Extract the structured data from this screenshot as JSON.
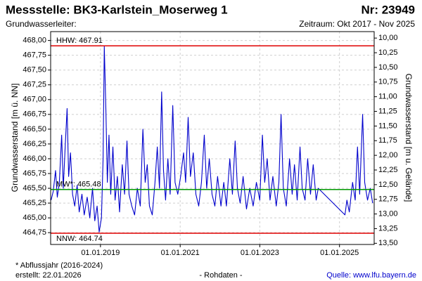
{
  "chart_data": {
    "type": "line",
    "title": "Messstelle: BK3-Karlstein_Moserweg 1",
    "title_right": "Nr: 23949",
    "subtitle": "Grundwasserleiter:",
    "subtitle_right": "Zeitraum: Okt 2017 - Nov 2025",
    "y_label": "Grundwasserstand [m ü. NN]",
    "y2_label": "Grundwasserstand [m u. Gelände]",
    "footnote": "* Abflussjahr (2016-2024)",
    "created": "erstellt:  22.01.2026",
    "data_note": "- Rohdaten -",
    "source": "Quelle: www.lfu.bayern.de",
    "color": "#0000cc",
    "grid": true,
    "xlim": [
      "2017-10-01",
      "2025-11-15"
    ],
    "xticks": [
      {
        "value": "2019-01-01",
        "label": "01.01.2019"
      },
      {
        "value": "2021-01-01",
        "label": "01.01.2021"
      },
      {
        "value": "2023-01-01",
        "label": "01.01.2023"
      },
      {
        "value": "2025-01-01",
        "label": "01.01.2025"
      }
    ],
    "ylim": [
      464.55,
      468.15
    ],
    "yticks": [
      {
        "value": 464.75,
        "label": "464,75"
      },
      {
        "value": 465,
        "label": "465,00"
      },
      {
        "value": 465.25,
        "label": "465,25"
      },
      {
        "value": 465.5,
        "label": "465,50"
      },
      {
        "value": 465.75,
        "label": "465,75"
      },
      {
        "value": 466,
        "label": "466,00"
      },
      {
        "value": 466.25,
        "label": "466,25"
      },
      {
        "value": 466.5,
        "label": "466,50"
      },
      {
        "value": 466.75,
        "label": "466,75"
      },
      {
        "value": 467,
        "label": "467,00"
      },
      {
        "value": 467.25,
        "label": "467,25"
      },
      {
        "value": 467.5,
        "label": "467,50"
      },
      {
        "value": 467.75,
        "label": "467,75"
      },
      {
        "value": 468,
        "label": "468,00"
      }
    ],
    "y2lim": [
      13.52,
      9.89
    ],
    "y2ticks": [
      {
        "value": 10,
        "label": "10,00"
      },
      {
        "value": 10.25,
        "label": "10,25"
      },
      {
        "value": 10.5,
        "label": "10,50"
      },
      {
        "value": 10.75,
        "label": "10,75"
      },
      {
        "value": 11,
        "label": "11,00"
      },
      {
        "value": 11.25,
        "label": "11,25"
      },
      {
        "value": 11.5,
        "label": "11,50"
      },
      {
        "value": 11.75,
        "label": "11,75"
      },
      {
        "value": 12,
        "label": "12,00"
      },
      {
        "value": 12.25,
        "label": "12,25"
      },
      {
        "value": 12.5,
        "label": "12,50"
      },
      {
        "value": 12.75,
        "label": "12,75"
      },
      {
        "value": 13,
        "label": "13,00"
      },
      {
        "value": 13.25,
        "label": "13,25"
      },
      {
        "value": 13.5,
        "label": "13,50"
      }
    ],
    "reference_lines": [
      {
        "label": "HHW: 467.91",
        "value": 467.91,
        "color": "#e00000"
      },
      {
        "label": "MW*: 465.48",
        "value": 465.48,
        "color": "#009900"
      },
      {
        "label": "NNW: 464.74",
        "value": 464.74,
        "color": "#e00000"
      }
    ],
    "x": [
      "2017-10-05",
      "2017-10-25",
      "2017-11-15",
      "2017-12-01",
      "2017-12-20",
      "2018-01-10",
      "2018-01-25",
      "2018-02-10",
      "2018-03-01",
      "2018-03-15",
      "2018-04-01",
      "2018-04-20",
      "2018-05-10",
      "2018-06-01",
      "2018-06-20",
      "2018-07-15",
      "2018-08-05",
      "2018-09-01",
      "2018-09-25",
      "2018-10-20",
      "2018-11-10",
      "2018-12-01",
      "2018-12-20",
      "2019-01-10",
      "2019-01-25",
      "2019-02-05",
      "2019-02-20",
      "2019-03-05",
      "2019-03-20",
      "2019-04-05",
      "2019-04-25",
      "2019-05-15",
      "2019-06-05",
      "2019-06-25",
      "2019-07-20",
      "2019-08-10",
      "2019-09-01",
      "2019-09-20",
      "2019-10-15",
      "2019-11-10",
      "2019-12-05",
      "2020-01-01",
      "2020-01-25",
      "2020-02-15",
      "2020-03-05",
      "2020-03-25",
      "2020-04-20",
      "2020-05-15",
      "2020-06-05",
      "2020-06-25",
      "2020-07-15",
      "2020-08-01",
      "2020-08-20",
      "2020-09-10",
      "2020-10-01",
      "2020-10-25",
      "2020-11-15",
      "2020-12-10",
      "2021-01-05",
      "2021-02-01",
      "2021-02-20",
      "2021-03-15",
      "2021-04-05",
      "2021-05-01",
      "2021-05-25",
      "2021-06-20",
      "2021-07-15",
      "2021-08-10",
      "2021-09-01",
      "2021-09-25",
      "2021-10-20",
      "2021-11-15",
      "2021-12-10",
      "2022-01-10",
      "2022-02-05",
      "2022-03-01",
      "2022-04-01",
      "2022-04-25",
      "2022-05-20",
      "2022-06-10",
      "2022-07-05",
      "2022-08-01",
      "2022-09-01",
      "2022-10-01",
      "2022-11-01",
      "2022-12-01",
      "2023-01-01",
      "2023-01-25",
      "2023-02-15",
      "2023-03-10",
      "2023-04-05",
      "2023-05-01",
      "2023-06-01",
      "2023-06-25",
      "2023-07-15",
      "2023-08-05",
      "2023-09-01",
      "2023-10-01",
      "2023-10-25",
      "2023-11-15",
      "2023-12-10",
      "2024-01-05",
      "2024-01-25",
      "2024-02-20",
      "2024-03-15",
      "2024-04-10",
      "2024-05-05",
      "2024-06-01",
      "2024-06-20",
      "2025-02-20",
      "2025-03-10",
      "2025-04-01",
      "2025-05-01",
      "2025-05-25",
      "2025-06-15",
      "2025-07-05",
      "2025-08-01",
      "2025-08-20",
      "2025-09-15",
      "2025-10-10",
      "2025-11-01"
    ],
    "values": [
      465.3,
      465.45,
      465.8,
      465.35,
      465.6,
      466.4,
      465.5,
      466.15,
      466.85,
      465.7,
      466.1,
      465.4,
      465.2,
      465.55,
      465.1,
      465.4,
      465.05,
      465.35,
      465.0,
      465.5,
      464.95,
      465.2,
      464.76,
      465.0,
      466.0,
      467.9,
      466.8,
      465.6,
      466.4,
      465.4,
      466.2,
      465.3,
      465.7,
      465.1,
      465.9,
      465.4,
      466.3,
      465.4,
      465.2,
      465.05,
      465.5,
      465.2,
      466.5,
      465.6,
      465.9,
      465.2,
      465.05,
      465.6,
      466.2,
      465.5,
      467.13,
      465.8,
      465.3,
      466.0,
      465.4,
      466.9,
      465.6,
      465.4,
      465.7,
      466.1,
      465.6,
      466.7,
      465.7,
      466.1,
      465.4,
      465.2,
      465.6,
      466.4,
      465.5,
      466.0,
      465.4,
      465.2,
      465.7,
      465.2,
      465.6,
      465.2,
      466.0,
      465.4,
      466.3,
      465.5,
      465.25,
      465.7,
      465.15,
      465.5,
      465.2,
      465.6,
      465.3,
      466.4,
      465.6,
      466.0,
      465.3,
      465.7,
      465.2,
      465.6,
      466.75,
      465.5,
      465.2,
      466.0,
      465.4,
      465.9,
      465.3,
      466.2,
      465.5,
      465.3,
      466.0,
      465.4,
      465.9,
      465.3,
      465.5,
      465.05,
      465.3,
      465.1,
      465.6,
      465.3,
      466.2,
      465.4,
      466.75,
      465.6,
      465.3,
      465.5,
      465.25
    ]
  }
}
